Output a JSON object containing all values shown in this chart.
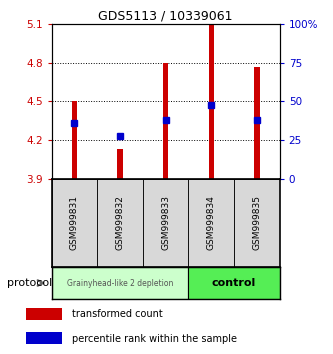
{
  "title": "GDS5113 / 10339061",
  "samples": [
    "GSM999831",
    "GSM999832",
    "GSM999833",
    "GSM999834",
    "GSM999835"
  ],
  "bar_bottom": 3.9,
  "bar_tops": [
    4.5,
    4.13,
    4.8,
    5.1,
    4.77
  ],
  "blue_dot_y": [
    4.33,
    4.23,
    4.36,
    4.47,
    4.36
  ],
  "ylim": [
    3.9,
    5.1
  ],
  "left_yticks": [
    3.9,
    4.2,
    4.5,
    4.8,
    5.1
  ],
  "right_yticks_vals": [
    0,
    25,
    50,
    75,
    100
  ],
  "right_yticks_pos": [
    3.9,
    4.2,
    4.5,
    4.8,
    5.1
  ],
  "bar_color": "#cc0000",
  "dot_color": "#0000cc",
  "group1_color": "#ccffcc",
  "group2_color": "#55ee55",
  "group1_label": "Grainyhead-like 2 depletion",
  "group2_label": "control",
  "group1_samples": [
    0,
    1,
    2
  ],
  "group2_samples": [
    3,
    4
  ],
  "protocol_label": "protocol",
  "legend_red": "transformed count",
  "legend_blue": "percentile rank within the sample",
  "bar_width": 0.12,
  "dot_size": 4,
  "background_color": "#ffffff",
  "grid_dotted_at": [
    4.2,
    4.5,
    4.8
  ],
  "label_box_color": "#d8d8d8",
  "title_fontsize": 9,
  "tick_fontsize": 7.5,
  "sample_fontsize": 6.5,
  "legend_fontsize": 7,
  "protocol_fontsize": 8
}
